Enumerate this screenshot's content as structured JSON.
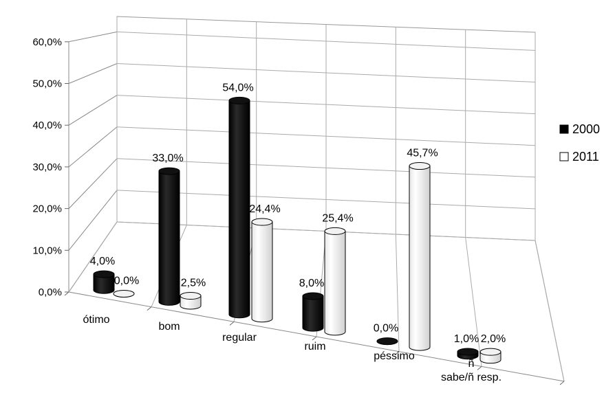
{
  "chart_data": {
    "type": "bar",
    "title": "",
    "xlabel": "",
    "ylabel": "",
    "ylim": [
      0,
      60
    ],
    "yticks": [
      "0,0%",
      "10,0%",
      "20,0%",
      "30,0%",
      "40,0%",
      "50,0%",
      "60,0%"
    ],
    "categories": [
      "ótimo",
      "bom",
      "regular",
      "ruim",
      "péssimo",
      "ñ sabe/ñ resp."
    ],
    "series": [
      {
        "name": "2000",
        "values": [
          4.0,
          33.0,
          54.0,
          8.0,
          0.0,
          1.0
        ],
        "labels": [
          "4,0%",
          "33,0%",
          "54,0%",
          "8,0%",
          "0,0%",
          "1,0%"
        ],
        "color": "#000000"
      },
      {
        "name": "2011",
        "values": [
          0.0,
          2.5,
          24.4,
          25.4,
          45.7,
          2.0
        ],
        "labels": [
          "0,0%",
          "2,5%",
          "24,4%",
          "25,4%",
          "45,7%",
          "2,0%"
        ],
        "color": "#ffffff"
      }
    ],
    "legend": "right",
    "grid": true,
    "style": "3d-cylinder"
  }
}
